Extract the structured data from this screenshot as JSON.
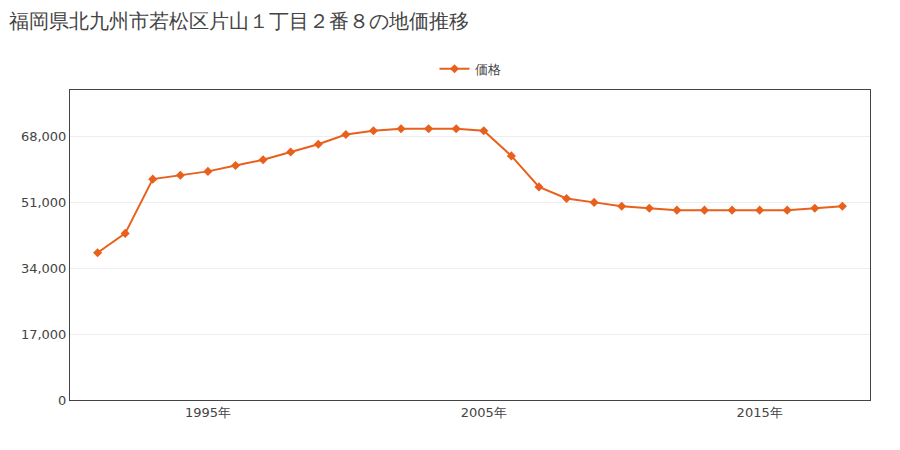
{
  "chart_data": {
    "type": "line",
    "title": "福岡県北九州市若松区片山１丁目２番８の地価推移",
    "x": [
      1991,
      1992,
      1993,
      1994,
      1995,
      1996,
      1997,
      1998,
      1999,
      2000,
      2001,
      2002,
      2003,
      2004,
      2005,
      2006,
      2007,
      2008,
      2009,
      2010,
      2011,
      2012,
      2013,
      2014,
      2015,
      2016,
      2017,
      2018
    ],
    "series": [
      {
        "name": "価格",
        "color": "#E8601C",
        "marker": "diamond",
        "values": [
          38000,
          43000,
          57000,
          58000,
          59000,
          60500,
          62000,
          64000,
          66000,
          68500,
          69500,
          70000,
          70000,
          70000,
          69500,
          63000,
          55000,
          52000,
          51000,
          50000,
          49500,
          49000,
          49000,
          49000,
          49000,
          49000,
          49500,
          50000
        ]
      }
    ],
    "xlim": [
      1990,
      2019
    ],
    "xticks": [
      {
        "value": 1995,
        "label": "1995年"
      },
      {
        "value": 2005,
        "label": "2005年"
      },
      {
        "value": 2015,
        "label": "2015年"
      }
    ],
    "ylim": [
      0,
      80000
    ],
    "yticks": [
      0,
      {
        "value": 17000,
        "label": "17,000"
      },
      {
        "value": 34000,
        "label": "34,000"
      },
      {
        "value": 51000,
        "label": "51,000"
      },
      {
        "value": 68000,
        "label": "68,000"
      }
    ],
    "grid": "y",
    "legend": "upper center"
  }
}
